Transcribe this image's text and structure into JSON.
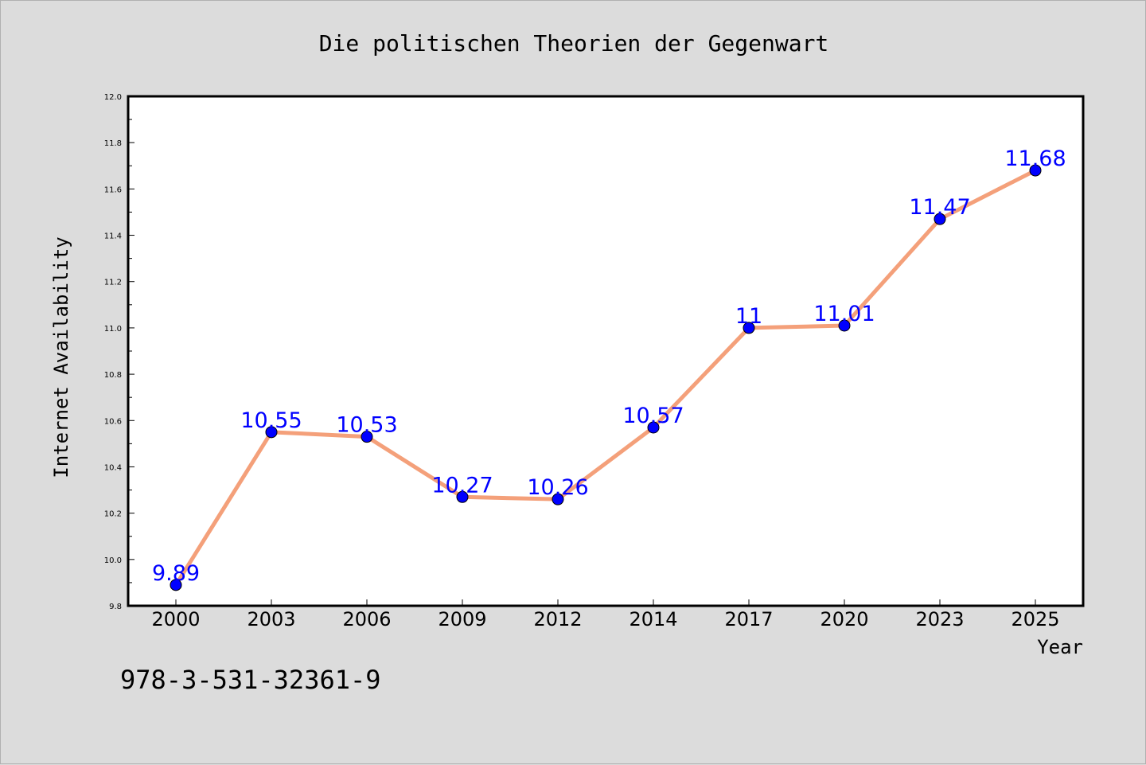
{
  "chart_data": {
    "type": "line",
    "title": "Die politischen Theorien der Gegenwart",
    "xlabel": "Year",
    "ylabel": "Internet Availability",
    "categories": [
      "2000",
      "2003",
      "2006",
      "2009",
      "2012",
      "2014",
      "2017",
      "2020",
      "2023",
      "2025"
    ],
    "series": [
      {
        "values": [
          9.89,
          10.55,
          10.53,
          10.27,
          10.26,
          10.57,
          11,
          11.01,
          11.47,
          11.68
        ],
        "labels": [
          "9.89",
          "10.55",
          "10.53",
          "10.27",
          "10.26",
          "10.57",
          "11",
          "11.01",
          "11.47",
          "11.68"
        ],
        "line_color": "#f4a07a",
        "marker_color": "#0000ff"
      }
    ],
    "ylim": [
      9.8,
      12.0
    ],
    "yticks": [
      "9.8",
      "10.0",
      "10.2",
      "10.4",
      "10.6",
      "10.8",
      "11.0",
      "11.2",
      "11.4",
      "11.6",
      "11.8",
      "12.0"
    ],
    "grid": false,
    "legend": "none"
  },
  "isbn": "978-3-531-32361-9",
  "colors": {
    "background": "#dcdcdc",
    "plot_area": "#ffffff",
    "line": "#f4a07a",
    "marker": "#0000ff",
    "data_label": "#0000ff"
  }
}
